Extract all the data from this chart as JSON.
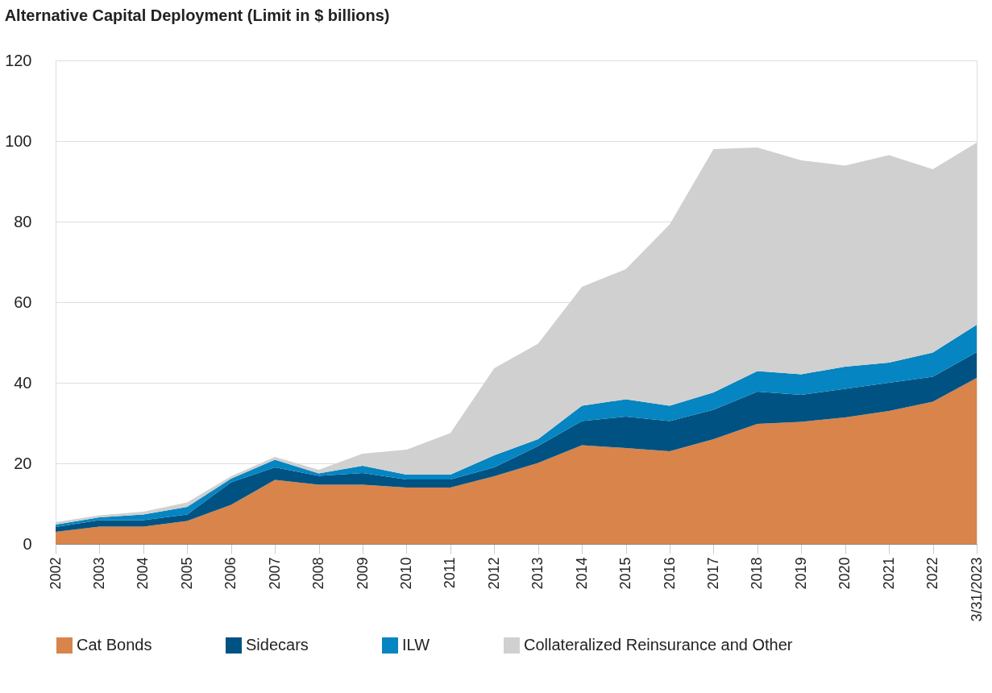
{
  "chart_data": {
    "type": "area",
    "title": "Alternative Capital Deployment (Limit in $ billions)",
    "categories": [
      "2002",
      "2003",
      "2004",
      "2005",
      "2006",
      "2007",
      "2008",
      "2009",
      "2010",
      "2011",
      "2012",
      "2013",
      "2014",
      "2015",
      "2016",
      "2017",
      "2018",
      "2019",
      "2020",
      "2021",
      "2022",
      "3/31/2023"
    ],
    "stacked": true,
    "series": [
      {
        "name": "Cat Bonds",
        "color": "#d9844a",
        "values": [
          3.0,
          4.3,
          4.3,
          5.7,
          9.7,
          15.9,
          14.7,
          14.7,
          14.0,
          14.0,
          16.8,
          20.1,
          24.5,
          23.8,
          23.0,
          26.0,
          29.8,
          30.3,
          31.4,
          33.0,
          35.3,
          41.2
        ]
      },
      {
        "name": "Sidecars",
        "color": "#005282",
        "values": [
          1.2,
          1.6,
          1.6,
          1.6,
          5.6,
          3.1,
          2.2,
          2.9,
          2.0,
          2.0,
          2.2,
          4.2,
          6.0,
          7.8,
          7.5,
          7.3,
          8.0,
          6.7,
          7.1,
          7.0,
          6.2,
          6.4
        ]
      },
      {
        "name": "ILW",
        "color": "#0585c1",
        "values": [
          0.6,
          0.7,
          1.4,
          1.9,
          0.9,
          1.9,
          0.6,
          1.8,
          1.2,
          1.2,
          3.0,
          1.7,
          3.8,
          4.3,
          3.8,
          4.3,
          5.1,
          5.1,
          5.5,
          5.0,
          6.0,
          6.8
        ]
      },
      {
        "name": "Collateralized Reinsurance and Other",
        "color": "#d0d0d0",
        "values": [
          0.6,
          0.5,
          0.7,
          1.1,
          0.6,
          0.7,
          0.9,
          3.0,
          6.2,
          10.3,
          21.6,
          23.7,
          29.5,
          32.3,
          45.0,
          60.4,
          55.5,
          53.1,
          49.9,
          51.5,
          45.5,
          45.2
        ]
      }
    ],
    "ylim": [
      0,
      120
    ],
    "yticks": [
      0,
      20,
      40,
      60,
      80,
      100,
      120
    ],
    "grid": "y",
    "legend": "bottom"
  }
}
